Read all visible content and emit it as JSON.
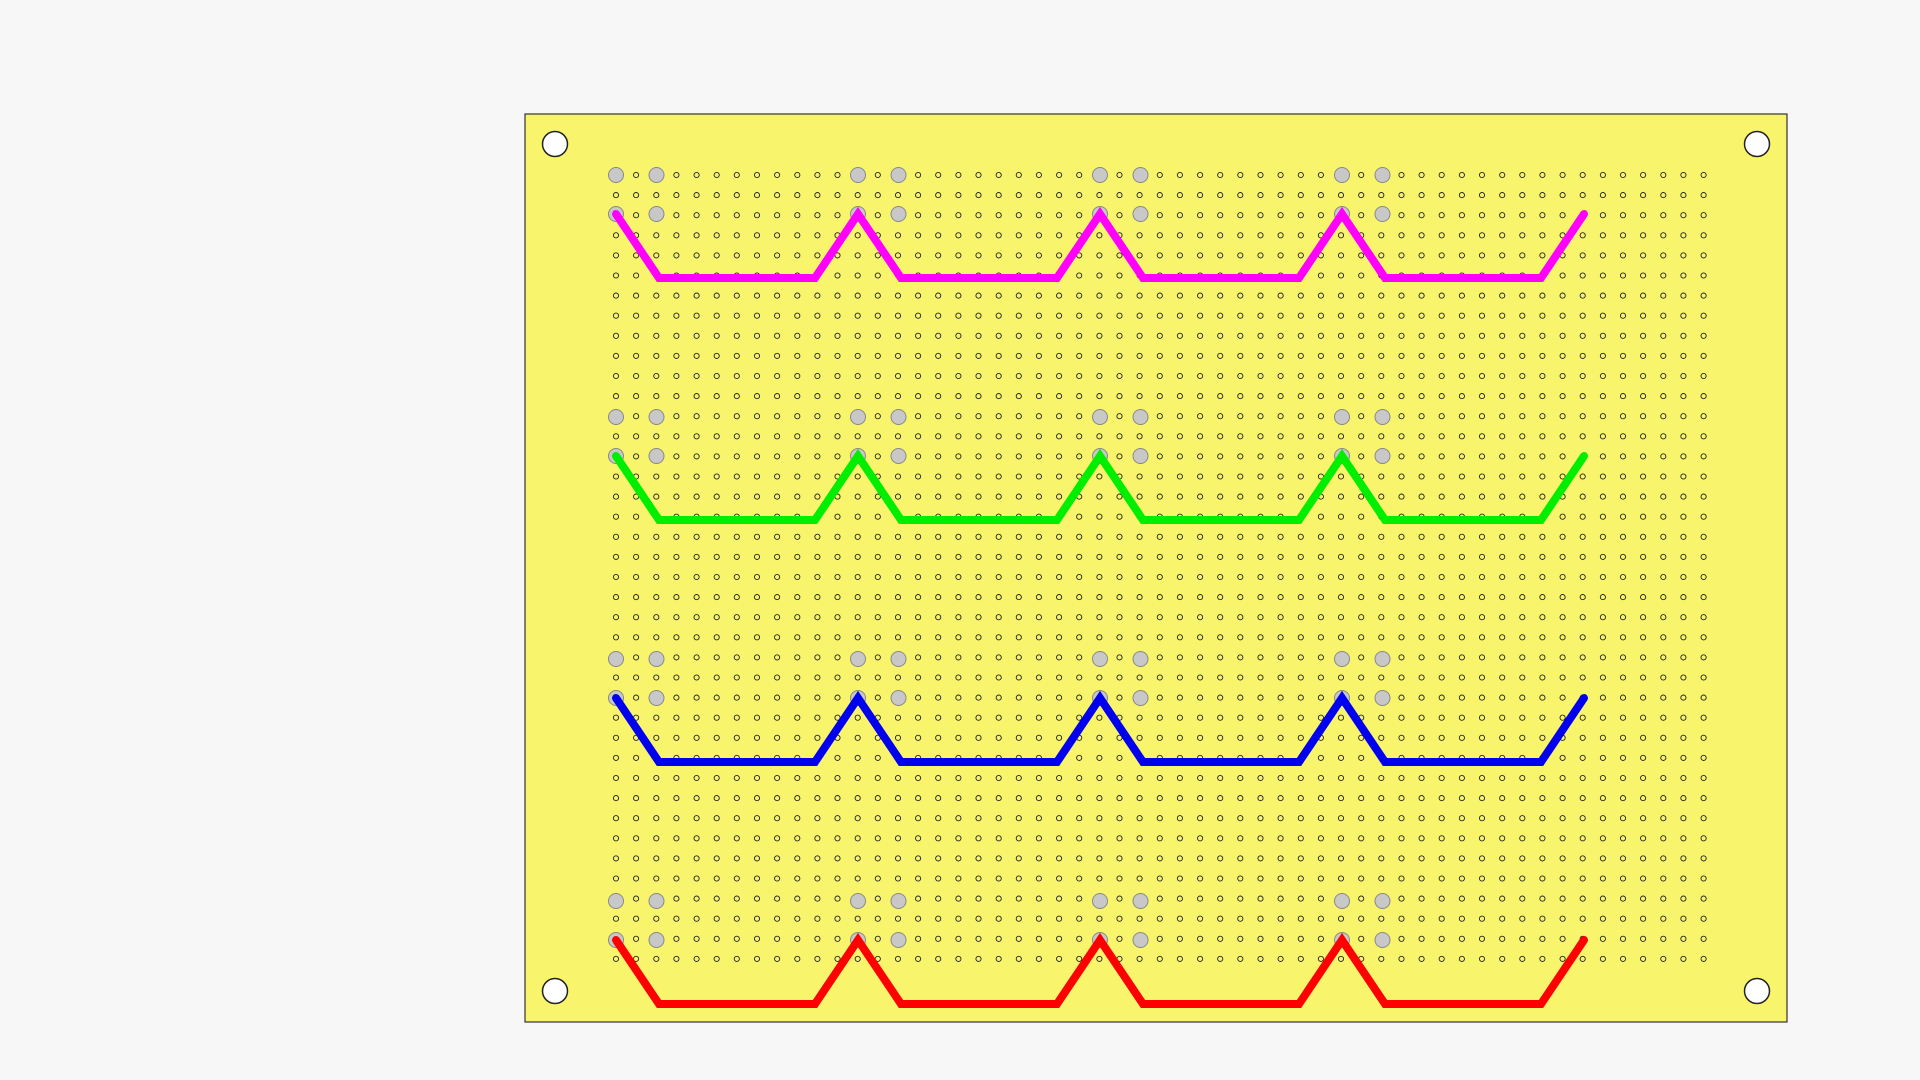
{
  "viewer": {
    "background_color": "#f7f7f7"
  },
  "board": {
    "fill_color": "#f8f56c",
    "outline_color": "#333333",
    "mounting_hole_fill": "#ffffff",
    "mounting_hole_stroke": "#222222"
  },
  "perfboard_grid": {
    "columns": 55,
    "rows": 40,
    "hole_fill": "#f8f56c",
    "hole_stroke": "#222222"
  },
  "pads": {
    "fill_color": "#c8c8c8",
    "stroke_color": "#888888"
  },
  "traces": [
    {
      "name": "magenta-trace",
      "color": "#ff00ff"
    },
    {
      "name": "green-trace",
      "color": "#00ee00"
    },
    {
      "name": "blue-trace",
      "color": "#0000ee"
    },
    {
      "name": "red-trace",
      "color": "#ff0000"
    }
  ]
}
